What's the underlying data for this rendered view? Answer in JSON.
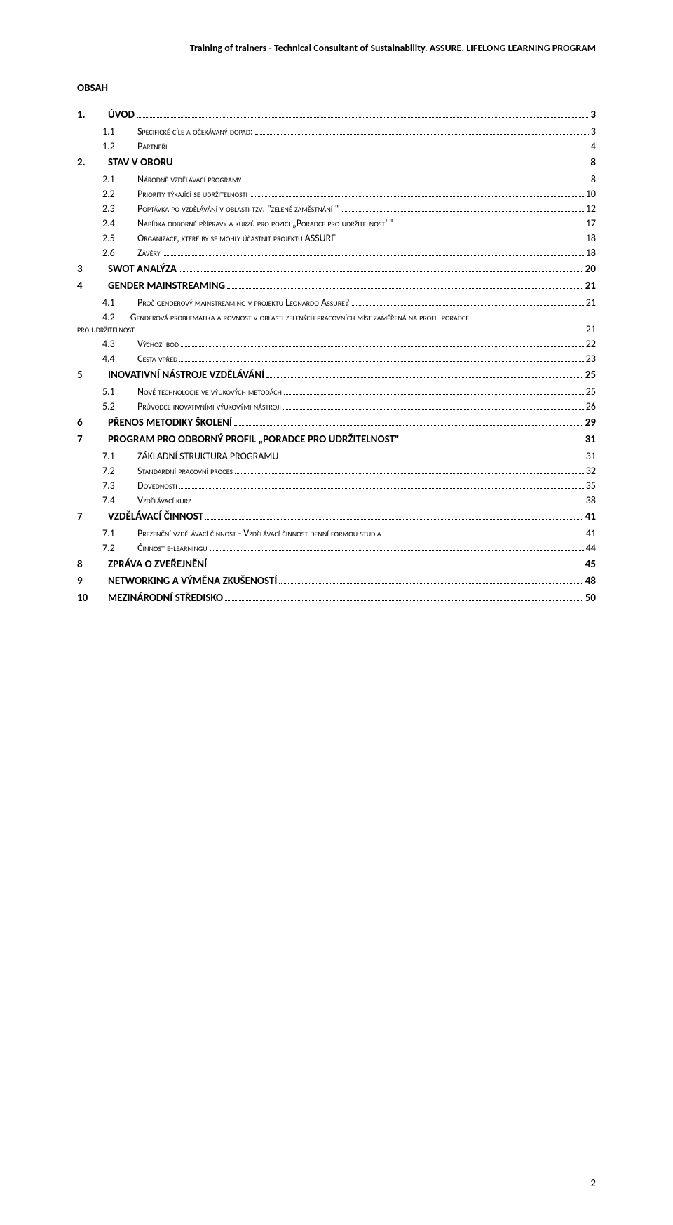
{
  "header": "Training of trainers - Technical Consultant of Sustainability. ASSURE. LIFELONG LEARNING PROGRAM",
  "section_title": "OBSAH",
  "page_number": "2",
  "toc": [
    {
      "level": 1,
      "num": "1.",
      "label": "ÚVOD",
      "page": "3"
    },
    {
      "level": 2,
      "num": "1.1",
      "label": "Specifické cíle a očekávaný dopad:",
      "sc": true,
      "page": "3"
    },
    {
      "level": 2,
      "num": "1.2",
      "label": "Partneři",
      "sc": true,
      "page": "4"
    },
    {
      "level": 1,
      "num": "2.",
      "label": "STAV V OBORU",
      "page": "8"
    },
    {
      "level": 2,
      "num": "2.1",
      "label": "Národně vzdělávací programy",
      "sc": true,
      "page": "8"
    },
    {
      "level": 2,
      "num": "2.2",
      "label": "Priority týkající se udržitelnosti",
      "sc": true,
      "page": "10"
    },
    {
      "level": 2,
      "num": "2.3",
      "label": "Poptávka po vzdělávání v oblasti tzv. \"zelené zaměstnání \"",
      "sc": true,
      "page": "12"
    },
    {
      "level": 2,
      "num": "2.4",
      "label": "Nabídka odborné přípravy a kurzů pro pozici „Poradce pro udržitelnost\"\"",
      "sc": true,
      "page": "17"
    },
    {
      "level": 2,
      "num": "2.5",
      "label": "Organizace, které by se mohly účastnit projektu ASSURE",
      "sc": true,
      "page": "18"
    },
    {
      "level": 2,
      "num": "2.6",
      "label": "Závěry",
      "sc": true,
      "page": "18"
    },
    {
      "level": 1,
      "num": "3",
      "label": "SWOT ANALÝZA",
      "page": "20"
    },
    {
      "level": 1,
      "num": "4",
      "label": "GENDER MAINSTREAMING",
      "page": "21"
    },
    {
      "level": 2,
      "num": "4.1",
      "label": "Proč genderový mainstreaming v projektu Leonardo Assure?",
      "sc": true,
      "page": "21"
    },
    {
      "level": 2,
      "num": "4.2",
      "label_lines": [
        "Genderová problematika a rovnost v oblasti zelených pracovních míst zaměřená na profil poradce",
        "pro udržitelnost"
      ],
      "sc": true,
      "page": "21"
    },
    {
      "level": 2,
      "num": "4.3",
      "label": "Výchozí bod",
      "sc": true,
      "page": "22"
    },
    {
      "level": 2,
      "num": "4.4",
      "label": "Cesta vpřed",
      "sc": true,
      "page": "23"
    },
    {
      "level": 1,
      "num": "5",
      "label": "INOVATIVNÍ NÁSTROJE VZDĚLÁVÁNÍ",
      "page": "25"
    },
    {
      "level": 2,
      "num": "5.1",
      "label": "Nové technologie ve výukových metodách",
      "sc": true,
      "page": "25"
    },
    {
      "level": 2,
      "num": "5.2",
      "label": "Průvodce inovativními výukovými nástroji",
      "sc": true,
      "page": "26"
    },
    {
      "level": 1,
      "num": "6",
      "label": "PŘENOS METODIKY ŠKOLENÍ",
      "page": "29"
    },
    {
      "level": 1,
      "num": "7",
      "label": "PROGRAM PRO ODBORNÝ PROFIL „PORADCE PRO UDRŽITELNOST\"",
      "page": "31"
    },
    {
      "level": 2,
      "num": "7.1",
      "label": "ZÁKLADNÍ STRUKTURA PROGRAMU",
      "sc": false,
      "page": "31"
    },
    {
      "level": 2,
      "num": "7.2",
      "label": "Standardní pracovní proces",
      "sc": true,
      "page": "32"
    },
    {
      "level": 2,
      "num": "7.3",
      "label": "Dovednosti",
      "sc": true,
      "page": "35"
    },
    {
      "level": 2,
      "num": "7.4",
      "label": "Vzdělávací kurz",
      "sc": true,
      "page": "38"
    },
    {
      "level": 1,
      "num": "7",
      "label": "VZDĚLÁVACÍ ČINNOST",
      "page": "41"
    },
    {
      "level": 2,
      "num": "7.1",
      "label": "Prezenční vzdělávací činnost - Vzdělávací činnost denní formou studia",
      "sc": true,
      "page": "41"
    },
    {
      "level": 2,
      "num": "7.2",
      "label": "Činnost e-learningu",
      "sc": true,
      "page": "44"
    },
    {
      "level": 1,
      "num": "8",
      "label": "ZPRÁVA O ZVEŘEJNĚNÍ",
      "page": "45"
    },
    {
      "level": 1,
      "num": "9",
      "label": "NETWORKING A VÝMĚNA ZKUŠENOSTÍ",
      "page": "48"
    },
    {
      "level": 1,
      "num": "10",
      "label": "MEZINÁRODNÍ STŘEDISKO",
      "page": "50"
    }
  ]
}
